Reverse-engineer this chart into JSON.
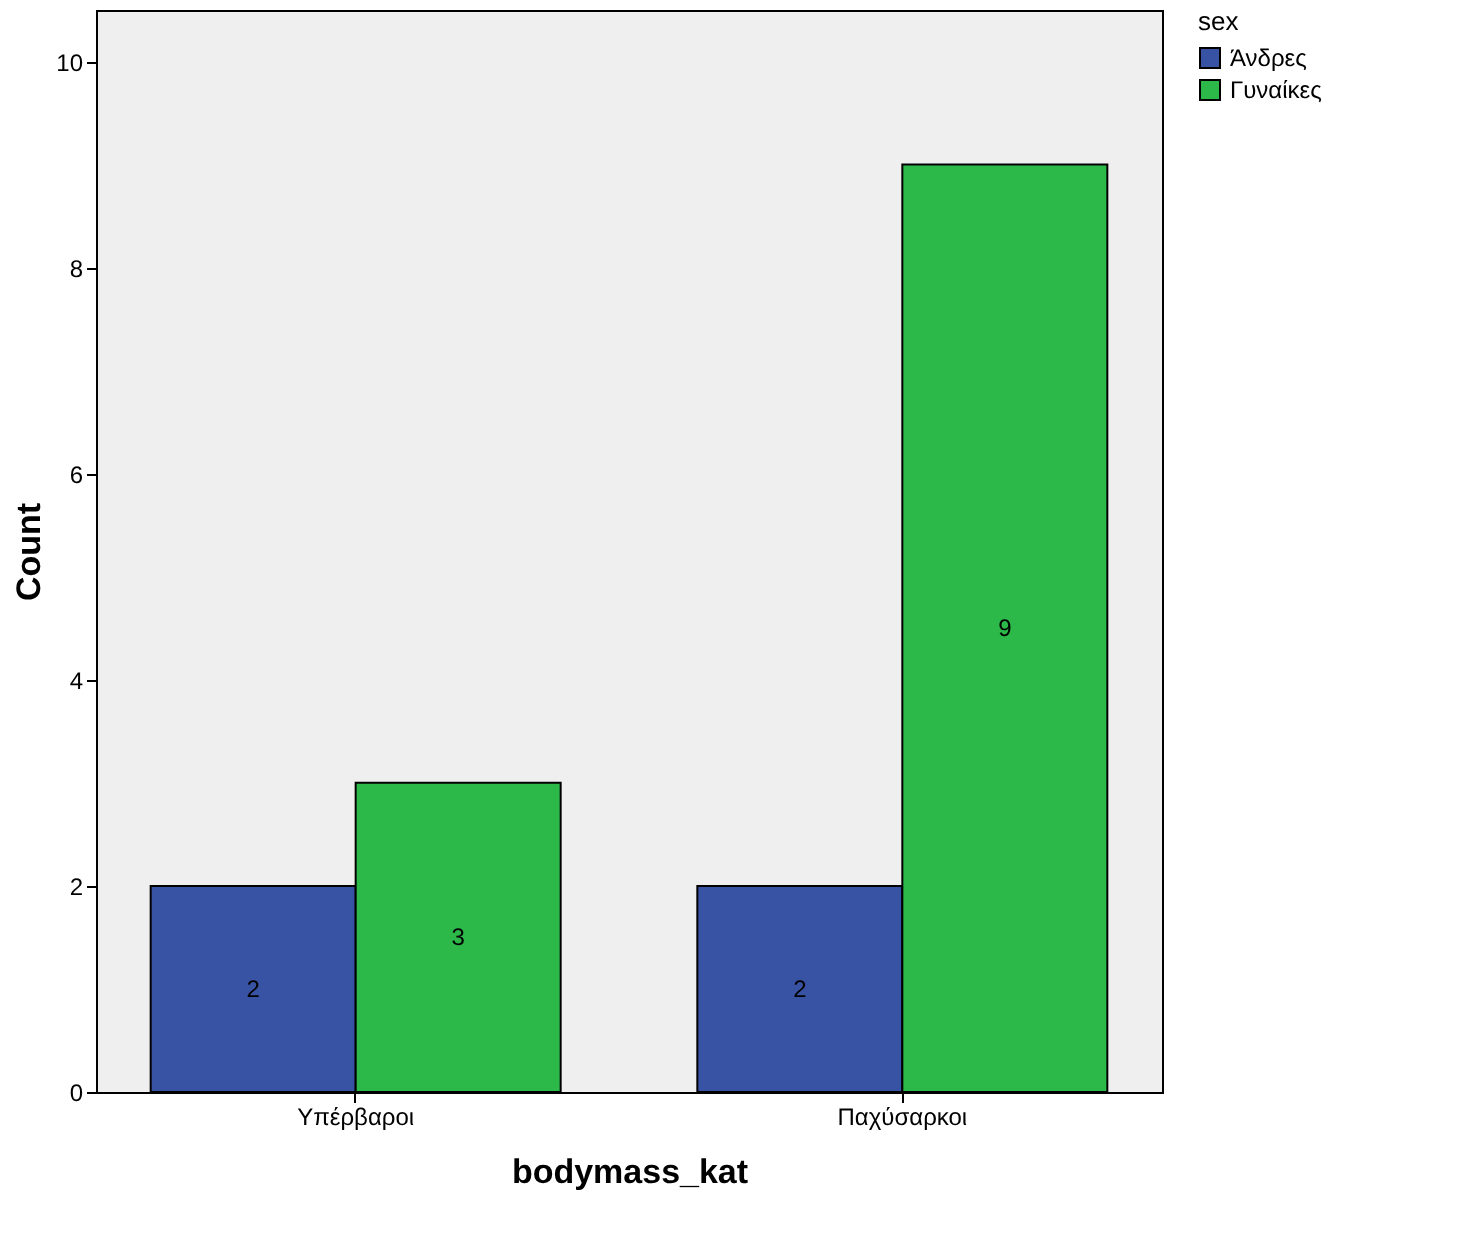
{
  "chart_data": {
    "type": "bar",
    "xlabel": "bodymass_kat",
    "ylabel": "Count",
    "legend_title": "sex",
    "categories": [
      "Υπέρβαροι",
      "Παχύσαρκοι"
    ],
    "series": [
      {
        "name": "Άνδρες",
        "color": "#3953a4",
        "values": [
          2,
          2
        ]
      },
      {
        "name": "Γυναίκες",
        "color": "#2db84a",
        "values": [
          3,
          9
        ]
      }
    ],
    "ylim": [
      0,
      10.5
    ],
    "yticks": [
      0,
      2,
      4,
      6,
      8,
      10
    ],
    "grid": false,
    "legend": "top right",
    "data_labels": true
  }
}
